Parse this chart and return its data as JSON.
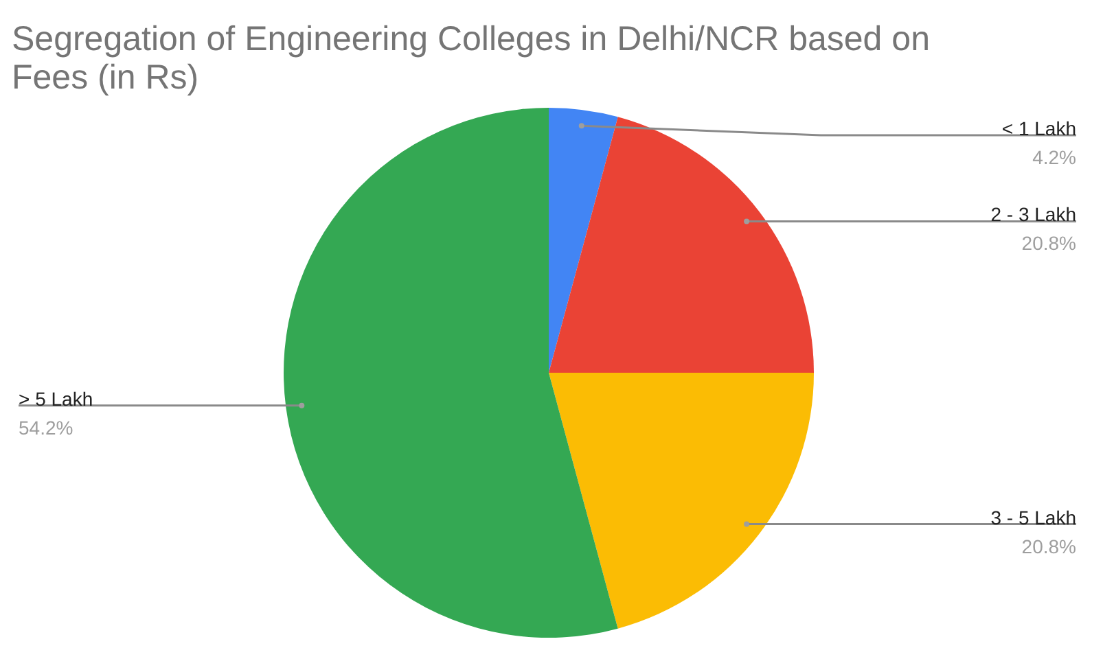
{
  "chart_data": {
    "type": "pie",
    "title": "Segregation of Engineering Colleges in Delhi/NCR based on Fees (in Rs)",
    "categories": [
      "< 1 Lakh",
      "2 - 3 Lakh",
      "3 - 5 Lakh",
      "> 5 Lakh"
    ],
    "values": [
      4.2,
      20.8,
      20.8,
      54.2
    ],
    "colors": [
      "#4285f4",
      "#ea4335",
      "#fbbc04",
      "#34a853"
    ],
    "value_labels": [
      "4.2%",
      "20.8%",
      "20.8%",
      "54.2%"
    ]
  }
}
